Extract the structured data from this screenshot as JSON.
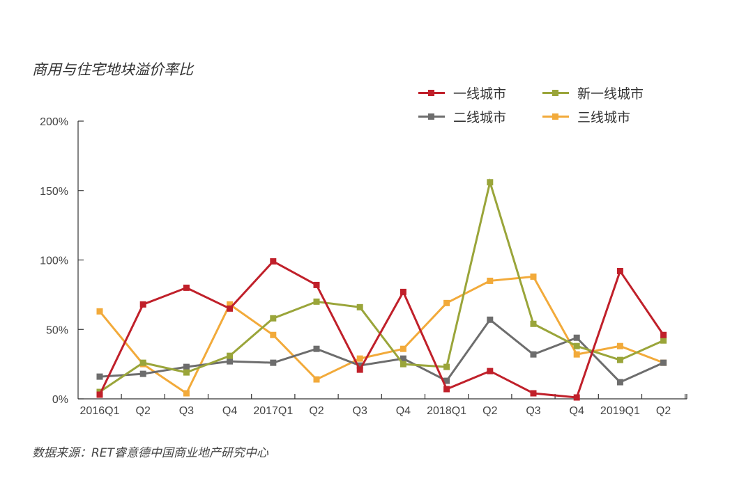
{
  "title": "商用与住宅地块溢价率比",
  "source": "数据来源：RET睿意德中国商业地产研究中心",
  "chart_data": {
    "type": "line",
    "title": "商用与住宅地块溢价率比",
    "xlabel": "",
    "ylabel": "",
    "categories": [
      "2016Q1",
      "Q2",
      "Q3",
      "Q4",
      "2017Q1",
      "Q2",
      "Q3",
      "Q4",
      "2018Q1",
      "Q2",
      "Q3",
      "Q4",
      "2019Q1",
      "Q2"
    ],
    "y_ticks": [
      "0%",
      "50%",
      "100%",
      "150%",
      "200%"
    ],
    "ylim": [
      0,
      200
    ],
    "grid": false,
    "legend_position": "top-right",
    "series": [
      {
        "name": "一线城市",
        "color": "#c0202a",
        "values": [
          3,
          68,
          80,
          65,
          99,
          82,
          21,
          77,
          7,
          20,
          4,
          1,
          92,
          46
        ]
      },
      {
        "name": "新一线城市",
        "color": "#9aa53a",
        "values": [
          5,
          26,
          19,
          31,
          58,
          70,
          66,
          25,
          23,
          156,
          54,
          38,
          28,
          42
        ]
      },
      {
        "name": "二线城市",
        "color": "#6d6d6d",
        "values": [
          16,
          18,
          23,
          27,
          26,
          36,
          24,
          29,
          13,
          57,
          32,
          44,
          12,
          26
        ]
      },
      {
        "name": "三线城市",
        "color": "#f2aa3a",
        "values": [
          63,
          25,
          4,
          68,
          46,
          14,
          29,
          36,
          69,
          85,
          88,
          32,
          38,
          26
        ]
      }
    ]
  }
}
